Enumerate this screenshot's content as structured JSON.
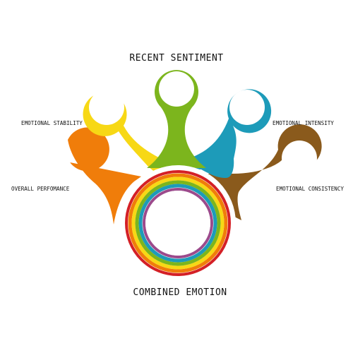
{
  "title": "RECENT SENTIMENT",
  "center_label": "COMBINED EMOTION",
  "petals": [
    {
      "label": "OVERALL PERFOMANCE",
      "color": "#f07d0a"
    },
    {
      "label": "EMOTIONAL STABILITY",
      "color": "#f7d815"
    },
    {
      "label": "",
      "color": "#7cb51d"
    },
    {
      "label": "EMOTIONAL INTENSITY",
      "color": "#1d9bb9"
    },
    {
      "label": "EMOTIONAL CONSISTENCY",
      "color": "#8a5a1c"
    }
  ],
  "rings": [
    "#d42026",
    "#f07d0a",
    "#f7d815",
    "#7cb51d",
    "#1d9bb9",
    "#9c4a8c"
  ]
}
